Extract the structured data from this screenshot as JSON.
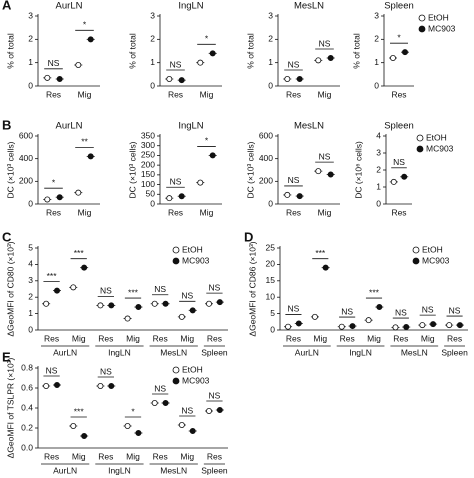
{
  "chart_data": [
    {
      "type": "dot",
      "panel": "A",
      "title": "AurLN",
      "ylabel": "% of total",
      "ylim": [
        0,
        3
      ],
      "yticks": [
        0,
        1,
        2,
        3
      ],
      "categories": [
        "Res",
        "Mig"
      ],
      "annotations": [
        "NS",
        "*"
      ],
      "series": [
        {
          "color": "#ffffff",
          "values": [
            0.35,
            0.9
          ]
        },
        {
          "color": "#111111",
          "values": [
            0.3,
            2.0
          ]
        }
      ]
    },
    {
      "type": "dot",
      "title": "IngLN",
      "ylabel": "% of total",
      "ylim": [
        0,
        3
      ],
      "yticks": [
        0,
        1,
        2,
        3
      ],
      "categories": [
        "Res",
        "Mig"
      ],
      "annotations": [
        "NS",
        "*"
      ],
      "series": [
        {
          "color": "#ffffff",
          "values": [
            0.3,
            1.0
          ]
        },
        {
          "color": "#111111",
          "values": [
            0.25,
            1.4
          ]
        }
      ]
    },
    {
      "type": "dot",
      "title": "MesLN",
      "ylabel": "% of total",
      "ylim": [
        0,
        3
      ],
      "yticks": [
        0,
        1,
        2,
        3
      ],
      "categories": [
        "Res",
        "Mig"
      ],
      "annotations": [
        "NS",
        "NS"
      ],
      "series": [
        {
          "color": "#ffffff",
          "values": [
            0.3,
            1.1
          ]
        },
        {
          "color": "#111111",
          "values": [
            0.3,
            1.2
          ]
        }
      ]
    },
    {
      "type": "dot",
      "title": "Spleen",
      "ylabel": "% of total",
      "ylim": [
        0,
        3
      ],
      "yticks": [
        0,
        1,
        2,
        3
      ],
      "categories": [
        "Res"
      ],
      "annotations": [
        "*"
      ],
      "legend": "right",
      "series": [
        {
          "name": "EtOH",
          "color": "#ffffff",
          "values": [
            1.2
          ]
        },
        {
          "name": "MC903",
          "color": "#111111",
          "values": [
            1.45
          ]
        }
      ]
    },
    {
      "type": "dot",
      "panel": "B",
      "title": "AurLN",
      "ylabel": "DC (×10³ cells)",
      "ylim": [
        0,
        600
      ],
      "yticks": [
        0,
        200,
        400,
        600
      ],
      "categories": [
        "Res",
        "Mig"
      ],
      "annotations": [
        "*",
        "**"
      ],
      "series": [
        {
          "color": "#ffffff",
          "values": [
            40,
            100
          ]
        },
        {
          "color": "#111111",
          "values": [
            60,
            420
          ]
        }
      ]
    },
    {
      "type": "dot",
      "title": "IngLN",
      "ylabel": "DC (×10³ cells)",
      "ylim": [
        0,
        350
      ],
      "yticks": [
        0,
        50,
        100,
        150,
        200,
        250,
        300,
        350
      ],
      "categories": [
        "Res",
        "Mig"
      ],
      "annotations": [
        "NS",
        "*"
      ],
      "series": [
        {
          "color": "#ffffff",
          "values": [
            30,
            110
          ]
        },
        {
          "color": "#111111",
          "values": [
            40,
            250
          ]
        }
      ]
    },
    {
      "type": "dot",
      "title": "MesLN",
      "ylabel": "DC (×10³ cells)",
      "ylim": [
        0,
        600
      ],
      "yticks": [
        0,
        200,
        400,
        600
      ],
      "categories": [
        "Res",
        "Mig"
      ],
      "annotations": [
        "NS",
        "NS"
      ],
      "series": [
        {
          "color": "#ffffff",
          "values": [
            80,
            290
          ]
        },
        {
          "color": "#111111",
          "values": [
            70,
            260
          ]
        }
      ]
    },
    {
      "type": "dot",
      "title": "Spleen",
      "ylabel": "DC (×10⁶ cells)",
      "ylim": [
        0,
        4
      ],
      "yticks": [
        0,
        1,
        2,
        3,
        4
      ],
      "categories": [
        "Res"
      ],
      "annotations": [
        "NS"
      ],
      "legend": "right",
      "series": [
        {
          "name": "EtOH",
          "color": "#ffffff",
          "values": [
            1.3
          ]
        },
        {
          "name": "MC903",
          "color": "#111111",
          "values": [
            1.6
          ]
        }
      ]
    },
    {
      "type": "dot",
      "panel": "C",
      "ylabel": "ΔGeoMFI of CD80 (×10³)",
      "ylim": [
        0,
        5
      ],
      "yticks": [
        0,
        1,
        2,
        3,
        4,
        5
      ],
      "groups": [
        {
          "name": "AurLN",
          "categories": [
            "Res",
            "Mig"
          ]
        },
        {
          "name": "IngLN",
          "categories": [
            "Res",
            "Mig"
          ]
        },
        {
          "name": "MesLN",
          "categories": [
            "Res",
            "Mig"
          ]
        },
        {
          "name": "Spleen",
          "categories": [
            "Res"
          ]
        }
      ],
      "annotations": [
        "***",
        "***",
        "NS",
        "***",
        "NS",
        "NS",
        "NS"
      ],
      "legend": "upper right",
      "series": [
        {
          "name": "EtOH",
          "color": "#ffffff",
          "values": [
            1.6,
            2.6,
            1.5,
            0.7,
            1.6,
            0.8,
            1.6
          ]
        },
        {
          "name": "MC903",
          "color": "#111111",
          "values": [
            2.4,
            3.8,
            1.5,
            1.4,
            1.6,
            1.2,
            1.7
          ]
        }
      ]
    },
    {
      "type": "dot",
      "panel": "D",
      "ylabel": "ΔGeoMFI of CD86 (×10³)",
      "ylim": [
        0,
        25
      ],
      "yticks": [
        0,
        5,
        10,
        15,
        20,
        25
      ],
      "groups": [
        {
          "name": "AurLN",
          "categories": [
            "Res",
            "Mig"
          ]
        },
        {
          "name": "IngLN",
          "categories": [
            "Res",
            "Mig"
          ]
        },
        {
          "name": "MesLN",
          "categories": [
            "Res",
            "Mig"
          ]
        },
        {
          "name": "Spleen",
          "categories": [
            "Res"
          ]
        }
      ],
      "annotations": [
        "NS",
        "***",
        "NS",
        "***",
        "NS",
        "NS",
        "NS"
      ],
      "legend": "upper right",
      "series": [
        {
          "name": "EtOH",
          "color": "#ffffff",
          "values": [
            1,
            4,
            1,
            3,
            0.8,
            1.5,
            1.5
          ]
        },
        {
          "name": "MC903",
          "color": "#111111",
          "values": [
            2,
            19,
            1.2,
            7,
            0.9,
            1.8,
            1.5
          ]
        }
      ]
    },
    {
      "type": "dot",
      "panel": "E",
      "ylabel": "ΔGeoMFI of TSLPR (×10³)",
      "ylim": [
        0,
        0.8
      ],
      "yticks": [
        {
          "value": 0,
          "label": "0.0"
        },
        0.2,
        0.4,
        0.6,
        0.8
      ],
      "groups": [
        {
          "name": "AurLN",
          "categories": [
            "Res",
            "Mig"
          ]
        },
        {
          "name": "IngLN",
          "categories": [
            "Res",
            "Mig"
          ]
        },
        {
          "name": "MesLN",
          "categories": [
            "Res",
            "Mig"
          ]
        },
        {
          "name": "Spleen",
          "categories": [
            "Res"
          ]
        }
      ],
      "annotations": [
        "NS",
        "***",
        "NS",
        "*",
        "NS",
        "NS",
        "NS"
      ],
      "legend": "upper right",
      "series": [
        {
          "name": "EtOH",
          "color": "#ffffff",
          "values": [
            0.62,
            0.22,
            0.62,
            0.22,
            0.45,
            0.23,
            0.37
          ]
        },
        {
          "name": "MC903",
          "color": "#111111",
          "values": [
            0.63,
            0.12,
            0.62,
            0.15,
            0.45,
            0.17,
            0.38
          ]
        }
      ]
    }
  ]
}
